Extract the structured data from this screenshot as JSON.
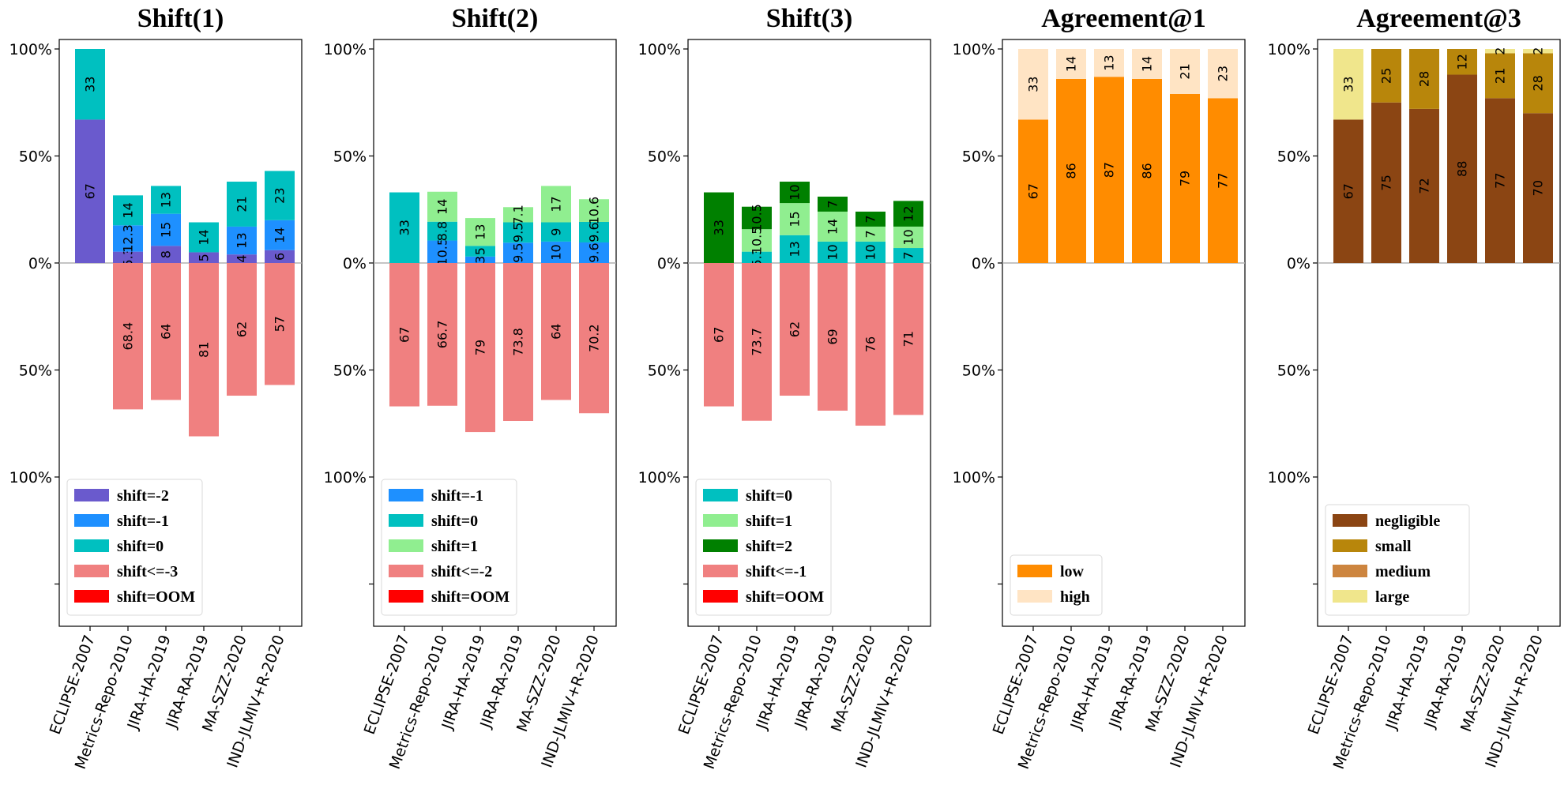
{
  "chart_data": [
    {
      "type": "bar",
      "title": "Shift(1)",
      "categories": [
        "ECLIPSE-2007",
        "Metrics-Repo-2010",
        "JIRA-HA-2019",
        "JIRA-RA-2019",
        "MA-SZZ-2020",
        "IND-JLMIV+R-2020"
      ],
      "y_tick_labels": [
        "100%",
        "50%",
        "0%",
        "50%",
        "100%",
        ""
      ],
      "ylim": [
        -170,
        105
      ],
      "legend_position": "lower-left",
      "series": [
        {
          "name": "shift=-2",
          "color": "#6a5acd",
          "values": [
            67,
            5.3,
            8,
            5,
            4,
            6
          ],
          "labels": [
            "67",
            "5.3",
            "8",
            "5",
            "4",
            "6"
          ]
        },
        {
          "name": "shift=-1",
          "color": "#1e90ff",
          "values": [
            0,
            12.3,
            15,
            0,
            13,
            14
          ],
          "labels": [
            "",
            "12.3",
            "15",
            "",
            "13",
            "14"
          ]
        },
        {
          "name": "shift=0",
          "color": "#00c0c0",
          "values": [
            33,
            14,
            13,
            14,
            21,
            23
          ],
          "labels": [
            "33",
            "14",
            "13",
            "14",
            "21",
            "23"
          ]
        },
        {
          "name": "shift<=-3",
          "color": "#f08080",
          "values": [
            0,
            -68.4,
            -64,
            -81,
            -62,
            -57
          ],
          "labels": [
            "",
            "68.4",
            "64",
            "81",
            "62",
            "57"
          ]
        },
        {
          "name": "shift=OOM",
          "color": "#ff0000",
          "values": [
            0,
            0,
            0,
            0,
            0,
            0
          ],
          "labels": [
            "",
            "",
            "",
            "",
            "",
            ""
          ]
        }
      ]
    },
    {
      "type": "bar",
      "title": "Shift(2)",
      "categories": [
        "ECLIPSE-2007",
        "Metrics-Repo-2010",
        "JIRA-HA-2019",
        "JIRA-RA-2019",
        "MA-SZZ-2020",
        "IND-JLMIV+R-2020"
      ],
      "y_tick_labels": [
        "100%",
        "50%",
        "0%",
        "50%",
        "100%",
        ""
      ],
      "ylim": [
        -170,
        105
      ],
      "legend_position": "lower-left",
      "series": [
        {
          "name": "shift=-1",
          "color": "#1e90ff",
          "values": [
            0,
            10.5,
            3,
            9.5,
            10,
            9.6
          ],
          "labels": [
            "",
            "10.5",
            "3",
            "9.5",
            "10",
            "9.6"
          ]
        },
        {
          "name": "shift=0",
          "color": "#00c0c0",
          "values": [
            33,
            8.8,
            5,
            9.5,
            9,
            9.6
          ],
          "labels": [
            "33",
            "8.8",
            "5",
            "9.5",
            "9",
            "9.6"
          ]
        },
        {
          "name": "shift=1",
          "color": "#90ee90",
          "values": [
            0,
            14,
            13,
            7.1,
            17,
            10.6
          ],
          "labels": [
            "",
            "14",
            "13",
            "7.1",
            "17",
            "10.6"
          ]
        },
        {
          "name": "shift<=-2",
          "color": "#f08080",
          "values": [
            -67,
            -66.7,
            -79,
            -73.8,
            -64,
            -70.2
          ],
          "labels": [
            "67",
            "66.7",
            "79",
            "73.8",
            "64",
            "70.2"
          ]
        },
        {
          "name": "shift=OOM",
          "color": "#ff0000",
          "values": [
            0,
            0,
            0,
            0,
            0,
            0
          ],
          "labels": [
            "",
            "",
            "",
            "",
            "",
            ""
          ]
        }
      ]
    },
    {
      "type": "bar",
      "title": "Shift(3)",
      "categories": [
        "ECLIPSE-2007",
        "Metrics-Repo-2010",
        "JIRA-HA-2019",
        "JIRA-RA-2019",
        "MA-SZZ-2020",
        "IND-JLMIV+R-2020"
      ],
      "y_tick_labels": [
        "100%",
        "50%",
        "0%",
        "50%",
        "100%",
        ""
      ],
      "ylim": [
        -170,
        105
      ],
      "legend_position": "lower-left",
      "series": [
        {
          "name": "shift=0",
          "color": "#00c0c0",
          "values": [
            0,
            5.3,
            13,
            10,
            10,
            7
          ],
          "labels": [
            "",
            "5.3",
            "13",
            "10",
            "10",
            "7"
          ]
        },
        {
          "name": "shift=1",
          "color": "#90ee90",
          "values": [
            0,
            10.5,
            15,
            14,
            7,
            10
          ],
          "labels": [
            "",
            "10.5",
            "15",
            "14",
            "7",
            "10"
          ]
        },
        {
          "name": "shift=2",
          "color": "#008000",
          "values": [
            33,
            10.5,
            10,
            7,
            7,
            12
          ],
          "labels": [
            "33",
            "10.5",
            "10",
            "7",
            "7",
            "12"
          ]
        },
        {
          "name": "shift<=-1",
          "color": "#f08080",
          "values": [
            -67,
            -73.7,
            -62,
            -69,
            -76,
            -71
          ],
          "labels": [
            "67",
            "73.7",
            "62",
            "69",
            "76",
            "71"
          ]
        },
        {
          "name": "shift=OOM",
          "color": "#ff0000",
          "values": [
            0,
            0,
            0,
            0,
            0,
            0
          ],
          "labels": [
            "",
            "",
            "",
            "",
            "",
            ""
          ]
        }
      ]
    },
    {
      "type": "bar",
      "title": "Agreement@1",
      "categories": [
        "ECLIPSE-2007",
        "Metrics-Repo-2010",
        "JIRA-HA-2019",
        "JIRA-RA-2019",
        "MA-SZZ-2020",
        "IND-JLMIV+R-2020"
      ],
      "y_tick_labels": [
        "100%",
        "50%",
        "0%",
        "50%",
        "100%",
        ""
      ],
      "ylim": [
        -170,
        105
      ],
      "legend_position": "lower-left",
      "series": [
        {
          "name": "low",
          "color": "#ff8c00",
          "values": [
            67,
            86,
            87,
            86,
            79,
            77
          ],
          "labels": [
            "67",
            "86",
            "87",
            "86",
            "79",
            "77"
          ]
        },
        {
          "name": "high",
          "color": "#ffe4c4",
          "values": [
            33,
            14,
            13,
            14,
            21,
            23
          ],
          "labels": [
            "33",
            "14",
            "13",
            "14",
            "21",
            "23"
          ]
        }
      ]
    },
    {
      "type": "bar",
      "title": "Agreement@3",
      "categories": [
        "ECLIPSE-2007",
        "Metrics-Repo-2010",
        "JIRA-HA-2019",
        "JIRA-RA-2019",
        "MA-SZZ-2020",
        "IND-JLMIV+R-2020"
      ],
      "y_tick_labels": [
        "100%",
        "50%",
        "0%",
        "50%",
        "100%",
        ""
      ],
      "ylim": [
        -170,
        105
      ],
      "legend_position": "lower-left",
      "series": [
        {
          "name": "negligible",
          "color": "#8b4513",
          "values": [
            67,
            75,
            72,
            88,
            77,
            70
          ],
          "labels": [
            "67",
            "75",
            "72",
            "88",
            "77",
            "70"
          ]
        },
        {
          "name": "small",
          "color": "#b8860b",
          "values": [
            0,
            25,
            28,
            12,
            21,
            28
          ],
          "labels": [
            "",
            "25",
            "28",
            "12",
            "21",
            "28"
          ]
        },
        {
          "name": "medium",
          "color": "#cd853f",
          "values": [
            0,
            0,
            0,
            0,
            0,
            0
          ],
          "labels": [
            "",
            "",
            "",
            "",
            "",
            ""
          ]
        },
        {
          "name": "large",
          "color": "#f0e68c",
          "values": [
            33,
            0,
            0,
            0,
            2,
            2
          ],
          "labels": [
            "33",
            "",
            "",
            "",
            "2",
            "2"
          ]
        }
      ]
    }
  ]
}
